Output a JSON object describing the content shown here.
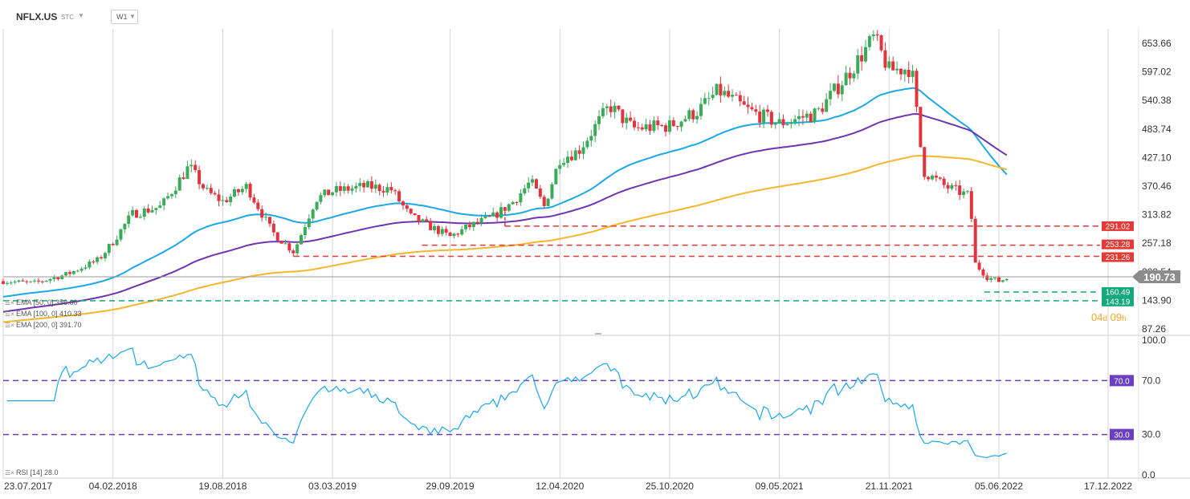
{
  "toolbar": {
    "symbol": "NFLX.US",
    "instrument_type": "STC",
    "timeframe": "W1",
    "caret_icon": "chevron-down-icon"
  },
  "legend": {
    "ema50": "EMA [50, 0] 359.60",
    "ema100": "EMA [100, 0] 410.33",
    "ema200": "EMA [200, 0] 391.70",
    "rsi": "RSI [14] 28.0"
  },
  "countdown": {
    "days": "04",
    "d": "d",
    "hours": "09",
    "h": "h"
  },
  "colors": {
    "bull": "#3bab5a",
    "bear": "#e0343e",
    "ema50": "#1ba8e6",
    "ema100": "#6e35b0",
    "ema200": "#f5b52c",
    "resistance": "#e53935",
    "support": "#14a87c",
    "rsi": "#1ba8e6",
    "rsi_levels": "#6b3fc0",
    "price_tag": "#8c8c8c"
  },
  "chart_data": [
    {
      "type": "candlestick",
      "timeframe": "W1",
      "y_axis_ticks": [
        "653.66",
        "597.02",
        "540.38",
        "483.74",
        "427.10",
        "370.46",
        "313.82",
        "257.18",
        "200.54",
        "143.90",
        "87.26"
      ],
      "ylim": [
        80,
        700
      ],
      "x_axis_ticks": [
        "23.07.2017",
        "04.02.2018",
        "19.08.2018",
        "03.03.2019",
        "29.09.2019",
        "12.04.2020",
        "25.10.2020",
        "09.05.2021",
        "21.11.2021",
        "05.06.2022",
        "17.12.2022"
      ],
      "last_price": "190.73",
      "approx_close_path": [
        [
          "2017-07-23",
          182
        ],
        [
          "2017-09-15",
          178
        ],
        [
          "2017-11-15",
          196
        ],
        [
          "2018-01-10",
          225
        ],
        [
          "2018-02-04",
          260
        ],
        [
          "2018-03-10",
          315
        ],
        [
          "2018-05-01",
          330
        ],
        [
          "2018-06-20",
          410
        ],
        [
          "2018-07-20",
          360
        ],
        [
          "2018-08-19",
          340
        ],
        [
          "2018-10-01",
          370
        ],
        [
          "2018-11-15",
          280
        ],
        [
          "2018-12-24",
          240
        ],
        [
          "2019-02-01",
          345
        ],
        [
          "2019-03-03",
          360
        ],
        [
          "2019-05-01",
          370
        ],
        [
          "2019-06-15",
          365
        ],
        [
          "2019-07-20",
          310
        ],
        [
          "2019-09-29",
          270
        ],
        [
          "2019-11-01",
          290
        ],
        [
          "2019-12-15",
          310
        ],
        [
          "2020-01-20",
          340
        ],
        [
          "2020-02-20",
          380
        ],
        [
          "2020-03-15",
          330
        ],
        [
          "2020-04-12",
          425
        ],
        [
          "2020-05-15",
          440
        ],
        [
          "2020-07-10",
          530
        ],
        [
          "2020-08-20",
          485
        ],
        [
          "2020-10-25",
          490
        ],
        [
          "2020-12-15",
          520
        ],
        [
          "2021-01-20",
          560
        ],
        [
          "2021-03-15",
          520
        ],
        [
          "2021-05-09",
          495
        ],
        [
          "2021-07-15",
          515
        ],
        [
          "2021-09-10",
          595
        ],
        [
          "2021-10-25",
          665
        ],
        [
          "2021-11-21",
          600
        ],
        [
          "2021-12-31",
          605
        ],
        [
          "2022-01-21",
          400
        ],
        [
          "2022-03-01",
          370
        ],
        [
          "2022-04-15",
          350
        ],
        [
          "2022-04-21",
          220
        ],
        [
          "2022-05-15",
          190
        ],
        [
          "2022-06-05",
          182
        ],
        [
          "2022-06-25",
          190
        ]
      ],
      "indicators": [
        {
          "name": "EMA [50, 0]",
          "value": "359.60"
        },
        {
          "name": "EMA [100, 0]",
          "value": "410.33"
        },
        {
          "name": "EMA [200, 0]",
          "value": "391.70"
        }
      ],
      "horizontal_levels": [
        {
          "label": "291.02",
          "kind": "resistance",
          "value": 291.02
        },
        {
          "label": "253.28",
          "kind": "resistance",
          "value": 253.28
        },
        {
          "label": "231.26",
          "kind": "resistance",
          "value": 231.26
        },
        {
          "label": "160.49",
          "kind": "support",
          "value": 160.49
        },
        {
          "label": "143.19",
          "kind": "support",
          "value": 143.19
        }
      ]
    },
    {
      "type": "line",
      "name": "RSI [14]",
      "value": "28.0",
      "y_axis_ticks": [
        "100.0",
        "70.0",
        "30.0",
        "0.0"
      ],
      "ylim": [
        0,
        100
      ],
      "levels": [
        {
          "label": "70.0",
          "value": 70
        },
        {
          "label": "30.0",
          "value": 30
        }
      ]
    }
  ]
}
